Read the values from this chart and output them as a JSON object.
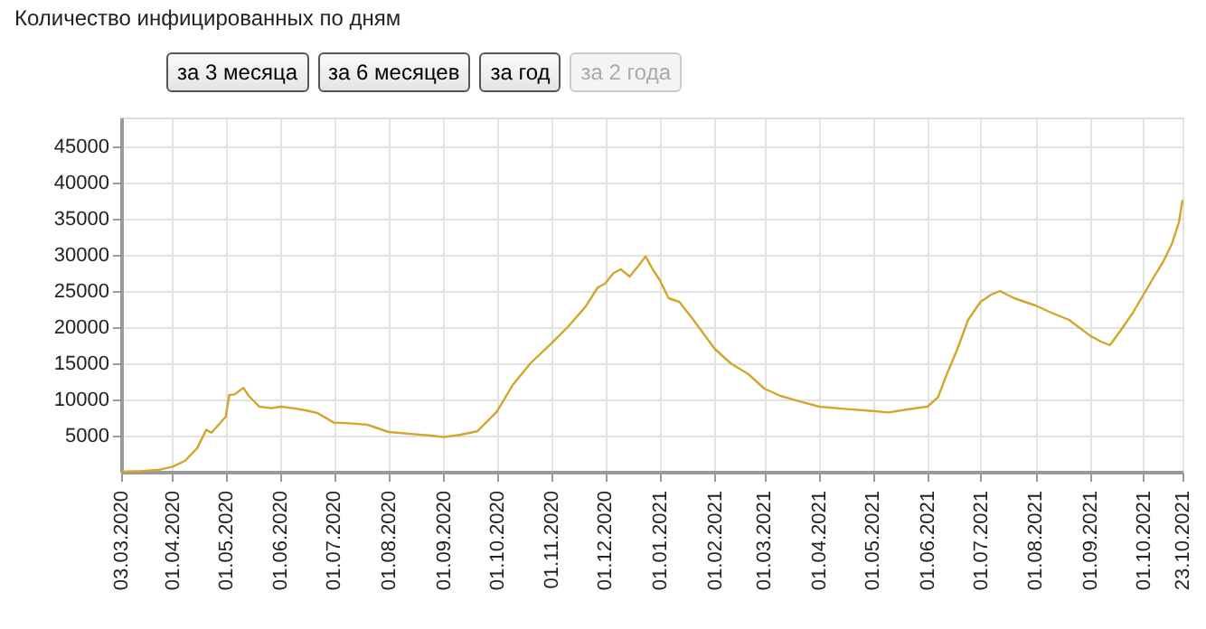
{
  "chart_data": {
    "type": "line",
    "title": "Количество инфицированных по дням",
    "annotations": [
      "за 3 месяца",
      "за 6 месяцев",
      "за год",
      "за 2 года"
    ],
    "x": [
      "2020-03-03",
      "2020-03-15",
      "2020-03-25",
      "2020-04-01",
      "2020-04-08",
      "2020-04-15",
      "2020-04-20",
      "2020-04-23",
      "2020-04-27",
      "2020-05-01",
      "2020-05-03",
      "2020-05-06",
      "2020-05-11",
      "2020-05-14",
      "2020-05-20",
      "2020-05-27",
      "2020-06-01",
      "2020-06-08",
      "2020-06-15",
      "2020-06-22",
      "2020-07-01",
      "2020-07-10",
      "2020-07-20",
      "2020-08-01",
      "2020-08-15",
      "2020-08-25",
      "2020-09-01",
      "2020-09-10",
      "2020-09-20",
      "2020-10-01",
      "2020-10-10",
      "2020-10-20",
      "2020-11-01",
      "2020-11-10",
      "2020-11-20",
      "2020-11-27",
      "2020-12-01",
      "2020-12-06",
      "2020-12-10",
      "2020-12-15",
      "2020-12-20",
      "2020-12-24",
      "2020-12-28",
      "2021-01-01",
      "2021-01-06",
      "2021-01-12",
      "2021-01-20",
      "2021-02-01",
      "2021-02-10",
      "2021-02-20",
      "2021-03-01",
      "2021-03-10",
      "2021-03-20",
      "2021-04-01",
      "2021-04-15",
      "2021-05-01",
      "2021-05-10",
      "2021-05-20",
      "2021-06-01",
      "2021-06-07",
      "2021-06-12",
      "2021-06-18",
      "2021-06-24",
      "2021-07-01",
      "2021-07-07",
      "2021-07-12",
      "2021-07-20",
      "2021-08-01",
      "2021-08-10",
      "2021-08-20",
      "2021-09-01",
      "2021-09-07",
      "2021-09-12",
      "2021-09-18",
      "2021-09-25",
      "2021-10-01",
      "2021-10-07",
      "2021-10-12",
      "2021-10-17",
      "2021-10-21",
      "2021-10-23"
    ],
    "values": [
      0,
      100,
      300,
      700,
      1500,
      3300,
      5800,
      5400,
      6500,
      7600,
      10600,
      10700,
      11600,
      10500,
      9000,
      8800,
      9000,
      8800,
      8500,
      8100,
      6800,
      6700,
      6500,
      5500,
      5200,
      5000,
      4800,
      5100,
      5600,
      8300,
      12000,
      15000,
      17800,
      20000,
      22800,
      25500,
      26000,
      27500,
      28000,
      27000,
      28500,
      29800,
      28000,
      26500,
      24000,
      23500,
      21000,
      17000,
      15000,
      13500,
      11500,
      10500,
      9800,
      9000,
      8700,
      8400,
      8200,
      8600,
      9000,
      10300,
      13500,
      17000,
      21000,
      23500,
      24500,
      25000,
      24000,
      23000,
      22000,
      21000,
      18800,
      18000,
      17500,
      19500,
      22000,
      24500,
      27000,
      29000,
      31500,
      34500,
      37600
    ],
    "color": "#d4a52a",
    "ylim": [
      0,
      49000
    ],
    "yticks": [
      5000,
      10000,
      15000,
      20000,
      25000,
      30000,
      35000,
      40000,
      45000
    ],
    "xlim": [
      "2020-03-03",
      "2021-10-23"
    ],
    "xticks": [
      {
        "value": "2020-03-03",
        "label": "03.03.2020"
      },
      {
        "value": "2020-04-01",
        "label": "01.04.2020"
      },
      {
        "value": "2020-05-01",
        "label": "01.05.2020"
      },
      {
        "value": "2020-06-01",
        "label": "01.06.2020"
      },
      {
        "value": "2020-07-01",
        "label": "01.07.2020"
      },
      {
        "value": "2020-08-01",
        "label": "01.08.2020"
      },
      {
        "value": "2020-09-01",
        "label": "01.09.2020"
      },
      {
        "value": "2020-10-01",
        "label": "01.10.2020"
      },
      {
        "value": "2020-11-01",
        "label": "01.11.2020"
      },
      {
        "value": "2020-12-01",
        "label": "01.12.2020"
      },
      {
        "value": "2021-01-01",
        "label": "01.01.2021"
      },
      {
        "value": "2021-02-01",
        "label": "01.02.2021"
      },
      {
        "value": "2021-03-01",
        "label": "01.03.2021"
      },
      {
        "value": "2021-04-01",
        "label": "01.04.2021"
      },
      {
        "value": "2021-05-01",
        "label": "01.05.2021"
      },
      {
        "value": "2021-06-01",
        "label": "01.06.2021"
      },
      {
        "value": "2021-07-01",
        "label": "01.07.2021"
      },
      {
        "value": "2021-08-01",
        "label": "01.08.2021"
      },
      {
        "value": "2021-09-01",
        "label": "01.09.2021"
      },
      {
        "value": "2021-10-01",
        "label": "01.10.2021"
      },
      {
        "value": "2021-10-23",
        "label": "23.10.2021"
      }
    ],
    "grid": true,
    "marker": "none",
    "line_style": "solid"
  }
}
